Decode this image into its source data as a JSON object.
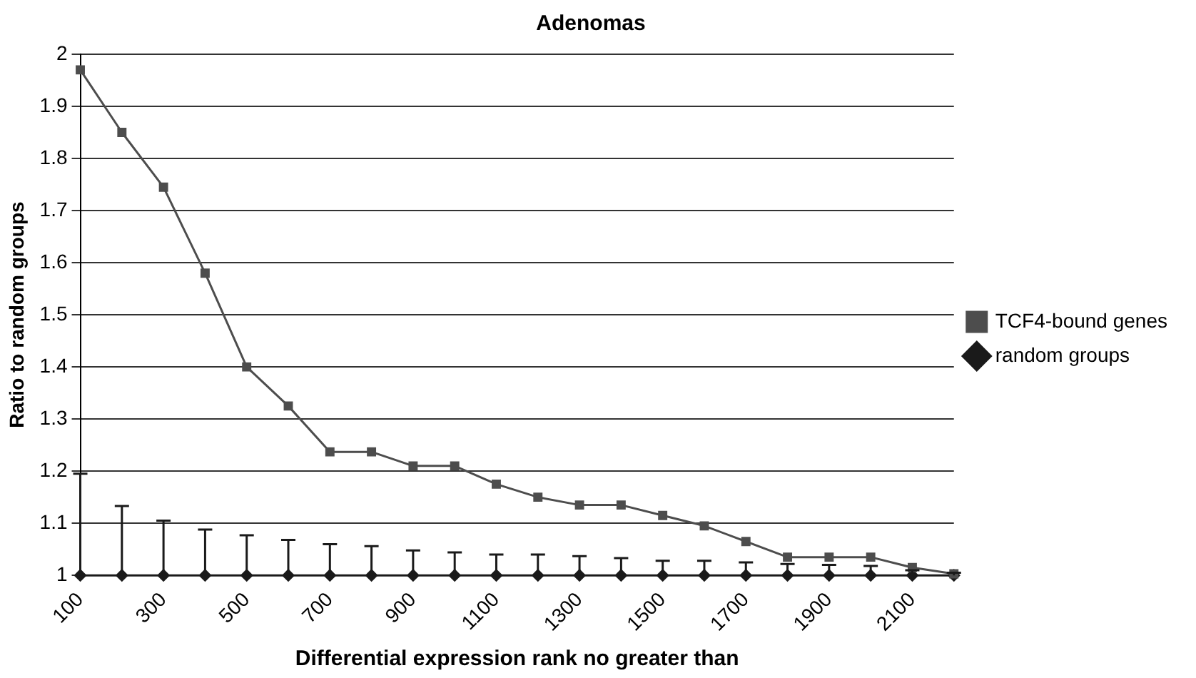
{
  "chart_data": {
    "type": "line",
    "title": "Adenomas",
    "xlabel": "Differential expression rank no greater than",
    "ylabel": "Ratio to random groups",
    "categories": [
      "100",
      null,
      "300",
      null,
      "500",
      null,
      "700",
      null,
      "900",
      null,
      "1100",
      null,
      "1300",
      null,
      "1500",
      null,
      "1700",
      null,
      "1900",
      null,
      "2100",
      null
    ],
    "series": [
      {
        "name": "random groups",
        "color": "#1a1a1a",
        "marker": "diamond",
        "values": [
          1,
          1,
          1,
          1,
          1,
          1,
          1,
          1,
          1,
          1,
          1,
          1,
          1,
          1,
          1,
          1,
          1,
          1,
          1,
          1,
          1,
          1
        ],
        "errors": [
          [
            1,
            1.195
          ],
          [
            1,
            1.133
          ],
          [
            1,
            1.105
          ],
          [
            1,
            1.088
          ],
          [
            1,
            1.077
          ],
          [
            1,
            1.068
          ],
          [
            1,
            1.06
          ],
          [
            1,
            1.056
          ],
          [
            1,
            1.048
          ],
          [
            1,
            1.044
          ],
          [
            1,
            1.04
          ],
          [
            1,
            1.04
          ],
          [
            1,
            1.037
          ],
          [
            1,
            1.033
          ],
          [
            1,
            1.028
          ],
          [
            1,
            1.028
          ],
          [
            1,
            1.025
          ],
          [
            1,
            1.022
          ],
          [
            1,
            1.02
          ],
          [
            1,
            1.018
          ],
          [
            1,
            1.01
          ],
          [
            1,
            1.005
          ]
        ]
      },
      {
        "name": "TCF4-bound genes",
        "color": "#4d4d4d",
        "marker": "square",
        "values": [
          1.97,
          1.85,
          1.745,
          1.58,
          1.4,
          1.325,
          1.237,
          1.237,
          1.21,
          1.21,
          1.175,
          1.15,
          1.135,
          1.135,
          1.115,
          1.095,
          1.065,
          1.035,
          1.035,
          1.035,
          1.015,
          1.003
        ]
      }
    ],
    "ylim": [
      1,
      2
    ],
    "yticks": [
      1,
      1.1,
      1.2,
      1.3,
      1.4,
      1.5,
      1.6,
      1.7,
      1.8,
      1.9,
      2
    ],
    "grid": "y",
    "legend": "right"
  }
}
